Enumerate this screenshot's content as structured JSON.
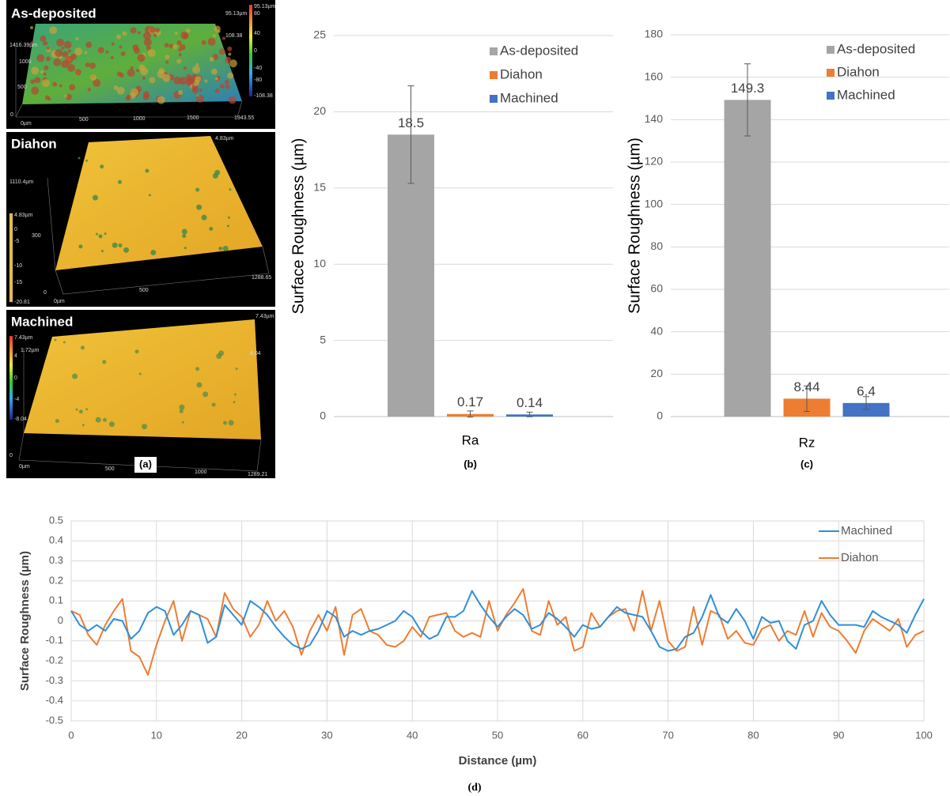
{
  "panel_a": {
    "caption": "(a)",
    "panels": [
      {
        "label": "As-deposited",
        "annotations": [
          "95.13µm",
          "108.38",
          "1416.39µm",
          "1000",
          "500",
          "0",
          "0µm",
          "500",
          "1000",
          "1500",
          "1943.55",
          "95.13µm",
          "80",
          "40",
          "0",
          "-40",
          "-80",
          "-108.38"
        ]
      },
      {
        "label": "Diahon",
        "annotations": [
          "4.83µm",
          "1110.4µm",
          "4.83µm",
          "0",
          "-5",
          "-10",
          "-15",
          "-20.81",
          "300",
          "0",
          "0µm",
          "500",
          "1288.65"
        ]
      },
      {
        "label": "Machined",
        "annotations": [
          "7.43µm",
          "1.72µm",
          "8.04",
          "7.43µm",
          "4",
          "0",
          "-4",
          "-8.04",
          "0",
          "0µm",
          "500",
          "1000",
          "1289.21"
        ]
      }
    ]
  },
  "chart_data": [
    {
      "type": "bar",
      "categories": [
        "Ra"
      ],
      "caption": "(b)",
      "y_label": "Surface Roughness (µm)",
      "ylim": [
        0,
        25
      ],
      "yticks": [
        0,
        5,
        10,
        15,
        20,
        25
      ],
      "grid": true,
      "series": [
        {
          "name": "As-deposited",
          "color": "#a5a5a5",
          "values": [
            18.5
          ],
          "errors": [
            3.2
          ]
        },
        {
          "name": "Diahon",
          "color": "#ed7d31",
          "values": [
            0.17
          ],
          "errors": [
            0.2
          ]
        },
        {
          "name": "Machined",
          "color": "#4472c4",
          "values": [
            0.14
          ],
          "errors": [
            0.15
          ]
        }
      ]
    },
    {
      "type": "bar",
      "categories": [
        "Rz"
      ],
      "caption": "(c)",
      "y_label": "Surface Roughness (µm)",
      "ylim": [
        0,
        180
      ],
      "yticks": [
        0,
        20,
        40,
        60,
        80,
        100,
        120,
        140,
        160,
        180
      ],
      "grid": true,
      "series": [
        {
          "name": "As-deposited",
          "color": "#a5a5a5",
          "values": [
            149.3
          ],
          "errors": [
            17
          ]
        },
        {
          "name": "Diahon",
          "color": "#ed7d31",
          "values": [
            8.44
          ],
          "errors": [
            6
          ]
        },
        {
          "name": "Machined",
          "color": "#4472c4",
          "values": [
            6.4
          ],
          "errors": [
            3
          ]
        }
      ]
    },
    {
      "type": "line",
      "caption": "(d)",
      "x_label": "Distance (µm)",
      "y_label": "Surface Roughness (µm)",
      "xlim": [
        0,
        100
      ],
      "xticks": [
        0,
        10,
        20,
        30,
        40,
        50,
        60,
        70,
        80,
        90,
        100
      ],
      "ylim": [
        -0.5,
        0.5
      ],
      "yticks": [
        -0.5,
        -0.4,
        -0.3,
        -0.2,
        -0.1,
        0,
        0.1,
        0.2,
        0.3,
        0.4,
        0.5
      ],
      "grid": true,
      "x": [
        0,
        1,
        2,
        3,
        4,
        5,
        6,
        7,
        8,
        9,
        10,
        11,
        12,
        13,
        14,
        15,
        16,
        17,
        18,
        19,
        20,
        21,
        22,
        23,
        24,
        25,
        26,
        27,
        28,
        29,
        30,
        31,
        32,
        33,
        34,
        35,
        36,
        37,
        38,
        39,
        40,
        41,
        42,
        43,
        44,
        45,
        46,
        47,
        48,
        49,
        50,
        51,
        52,
        53,
        54,
        55,
        56,
        57,
        58,
        59,
        60,
        61,
        62,
        63,
        64,
        65,
        66,
        67,
        68,
        69,
        70,
        71,
        72,
        73,
        74,
        75,
        76,
        77,
        78,
        79,
        80,
        81,
        82,
        83,
        84,
        85,
        86,
        87,
        88,
        89,
        90,
        91,
        92,
        93,
        94,
        95,
        96,
        97,
        98,
        99,
        100
      ],
      "series": [
        {
          "name": "Machined",
          "color": "#2f8fd8",
          "values": [
            0.05,
            -0.02,
            -0.05,
            -0.02,
            -0.05,
            0.01,
            0,
            -0.09,
            -0.05,
            0.04,
            0.07,
            0.05,
            -0.07,
            -0.02,
            0.05,
            0.03,
            -0.11,
            -0.08,
            0.08,
            0.03,
            -0.02,
            0.1,
            0.07,
            0.03,
            -0.03,
            -0.08,
            -0.12,
            -0.14,
            -0.12,
            -0.05,
            0.05,
            0.02,
            -0.08,
            -0.05,
            -0.07,
            -0.05,
            -0.04,
            -0.02,
            0,
            0.05,
            0.02,
            -0.05,
            -0.09,
            -0.07,
            0.02,
            0.02,
            0.05,
            0.15,
            0.08,
            0.02,
            -0.03,
            0.02,
            0.06,
            0.03,
            -0.04,
            -0.02,
            0.04,
            0.01,
            -0.03,
            -0.08,
            -0.02,
            -0.04,
            -0.03,
            0.02,
            0.07,
            0.04,
            0.03,
            0.02,
            -0.05,
            -0.13,
            -0.15,
            -0.14,
            -0.08,
            -0.06,
            0.02,
            0.13,
            0.02,
            -0.01,
            0.06,
            0,
            -0.09,
            0.02,
            -0.01,
            0,
            -0.1,
            -0.14,
            -0.02,
            0,
            0.1,
            0.03,
            -0.02,
            -0.02,
            -0.02,
            -0.03,
            0.05,
            0.02,
            0,
            -0.02,
            -0.06,
            0.03,
            0.11
          ]
        },
        {
          "name": "Diahon",
          "color": "#ed7d31",
          "values": [
            0.05,
            0.03,
            -0.07,
            -0.12,
            -0.02,
            0.05,
            0.11,
            -0.15,
            -0.18,
            -0.27,
            -0.12,
            0,
            0.1,
            -0.1,
            0.05,
            0.03,
            0.01,
            -0.08,
            0.14,
            0.06,
            0.02,
            -0.08,
            -0.02,
            0.1,
            0,
            0.05,
            -0.03,
            -0.17,
            -0.05,
            0.03,
            -0.05,
            0.07,
            -0.17,
            0.03,
            0.06,
            -0.05,
            -0.07,
            -0.12,
            -0.13,
            -0.1,
            -0.03,
            -0.08,
            0.02,
            0.03,
            0.04,
            -0.05,
            -0.08,
            -0.06,
            -0.08,
            0.1,
            -0.05,
            0.03,
            0.09,
            0.16,
            -0.05,
            -0.07,
            0.1,
            -0.02,
            0.02,
            -0.15,
            -0.13,
            0.04,
            -0.03,
            0.02,
            0.05,
            0.06,
            -0.05,
            0.15,
            -0.05,
            0.1,
            -0.1,
            -0.15,
            -0.13,
            0.07,
            -0.12,
            0.05,
            0.03,
            -0.09,
            -0.05,
            -0.11,
            -0.12,
            -0.04,
            -0.02,
            -0.1,
            -0.05,
            -0.07,
            0.05,
            -0.08,
            0.04,
            -0.03,
            -0.05,
            -0.1,
            -0.16,
            -0.05,
            0.01,
            -0.02,
            -0.05,
            0.01,
            -0.13,
            -0.07,
            -0.05
          ]
        }
      ]
    }
  ]
}
